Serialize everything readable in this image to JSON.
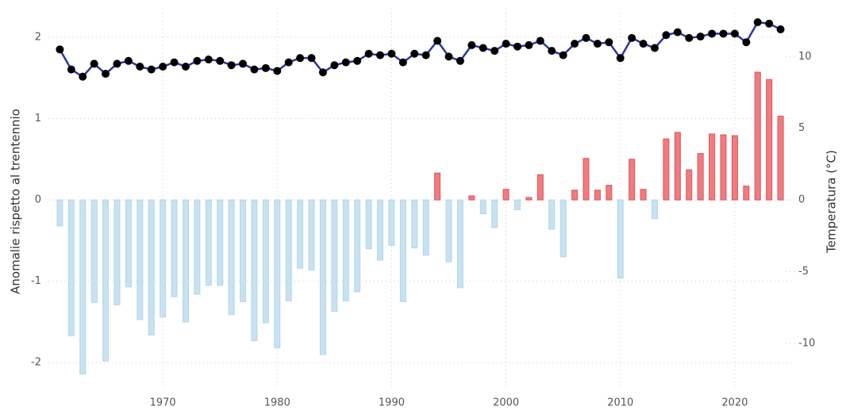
{
  "chart_data": {
    "type": "bar-line",
    "x": [
      1961,
      1962,
      1963,
      1964,
      1965,
      1966,
      1967,
      1968,
      1969,
      1970,
      1971,
      1972,
      1973,
      1974,
      1975,
      1976,
      1977,
      1978,
      1979,
      1980,
      1981,
      1982,
      1983,
      1984,
      1985,
      1986,
      1987,
      1988,
      1989,
      1990,
      1991,
      1992,
      1993,
      1994,
      1995,
      1996,
      1997,
      1998,
      1999,
      2000,
      2001,
      2002,
      2003,
      2004,
      2005,
      2006,
      2007,
      2008,
      2009,
      2010,
      2011,
      2012,
      2013,
      2014,
      2015,
      2016,
      2017,
      2018,
      2019,
      2020,
      2021,
      2022,
      2023,
      2024
    ],
    "series": [
      {
        "type": "bar",
        "axis": "y",
        "positive_color": "#f07b80",
        "negative_color": "#c7e2f0",
        "values": [
          -0.32,
          -1.67,
          -2.14,
          -1.26,
          -1.98,
          -1.29,
          -1.07,
          -1.47,
          -1.66,
          -1.44,
          -1.19,
          -1.5,
          -1.16,
          -1.05,
          -1.05,
          -1.41,
          -1.25,
          -1.73,
          -1.51,
          -1.82,
          -1.24,
          -0.84,
          -0.86,
          -1.9,
          -1.37,
          -1.24,
          -1.13,
          -0.6,
          -0.74,
          -0.56,
          -1.25,
          -0.59,
          -0.68,
          0.33,
          -0.76,
          -1.08,
          0.05,
          -0.17,
          -0.34,
          0.13,
          -0.12,
          0.03,
          0.31,
          -0.36,
          -0.7,
          0.12,
          0.51,
          0.12,
          0.18,
          -0.96,
          0.5,
          0.13,
          -0.23,
          0.75,
          0.83,
          0.37,
          0.57,
          0.81,
          0.8,
          0.79,
          0.17,
          1.57,
          1.48,
          1.03
        ]
      },
      {
        "type": "line",
        "axis": "y2",
        "color": "#2b35a8",
        "marker_color": "#000000",
        "values": [
          10.5,
          9.1,
          8.6,
          9.5,
          8.8,
          9.5,
          9.7,
          9.3,
          9.1,
          9.3,
          9.6,
          9.3,
          9.7,
          9.8,
          9.7,
          9.4,
          9.5,
          9.1,
          9.2,
          9.0,
          9.6,
          9.9,
          9.9,
          8.9,
          9.4,
          9.6,
          9.7,
          10.2,
          10.1,
          10.2,
          9.6,
          10.2,
          10.1,
          11.1,
          10.0,
          9.7,
          10.8,
          10.6,
          10.4,
          10.9,
          10.7,
          10.8,
          11.1,
          10.4,
          10.1,
          10.9,
          11.3,
          10.9,
          11.0,
          9.9,
          11.3,
          10.9,
          10.6,
          11.5,
          11.7,
          11.3,
          11.4,
          11.6,
          11.6,
          11.6,
          11.0,
          12.4,
          12.3,
          11.9
        ]
      }
    ],
    "ylabel": "Anomalie rispetto al trentennio",
    "y2label": "Temperatura (°C)",
    "xlim": [
      1960,
      2025
    ],
    "xticks": [
      1970,
      1980,
      1990,
      2000,
      2010,
      2020
    ],
    "ylim": [
      -2.3,
      2.35
    ],
    "yticks": [
      -2,
      -1,
      0,
      1,
      2
    ],
    "y2lim": [
      -13.05,
      13.34
    ],
    "y2ticks": [
      -10,
      -5,
      0,
      5,
      10
    ],
    "grid": true
  }
}
